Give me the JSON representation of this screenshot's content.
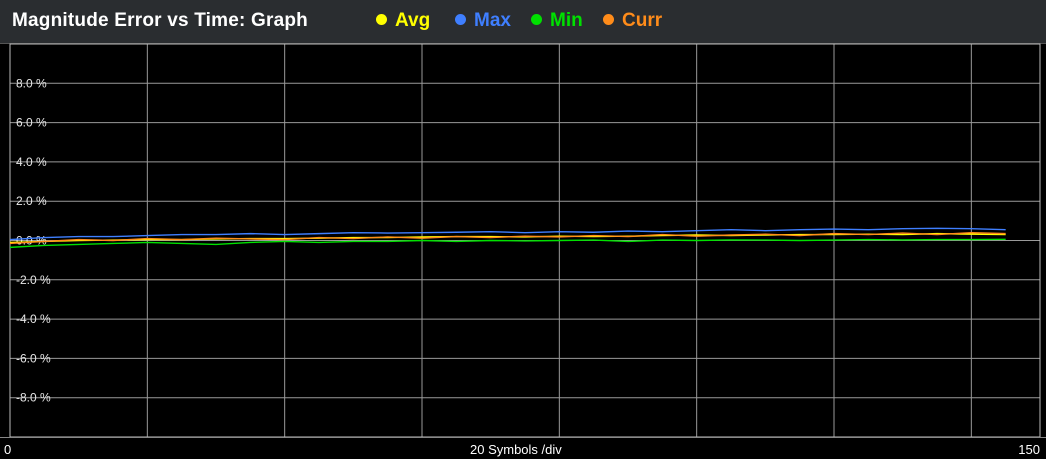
{
  "header": {
    "title": "Magnitude Error vs Time: Graph"
  },
  "legend": [
    {
      "label": "Avg",
      "color": "#ffff00",
      "icon": "dot-icon"
    },
    {
      "label": "Max",
      "color": "#3f7fff",
      "icon": "dot-icon"
    },
    {
      "label": "Min",
      "color": "#00e000",
      "icon": "dot-icon"
    },
    {
      "label": "Curr",
      "color": "#ff8c1a",
      "icon": "dot-icon"
    }
  ],
  "x_axis": {
    "start_label": "0",
    "center_label": "20 Symbols /div",
    "end_label": "150"
  },
  "chart_data": {
    "type": "line",
    "title": "Magnitude Error vs Time: Graph",
    "xlabel": "20 Symbols /div",
    "ylabel": "",
    "xlim": [
      0,
      150
    ],
    "ylim": [
      -10,
      10
    ],
    "grid": true,
    "legend_position": "top",
    "y_ticks": [
      8,
      6,
      4,
      2,
      0,
      -2,
      -4,
      -6,
      -8
    ],
    "y_tick_labels": [
      "8.0 %",
      "6.0 %",
      "4.0 %",
      "2.0 %",
      "0.0 %",
      "-2.0 %",
      "-4.0 %",
      "-6.0 %",
      "-8.0 %"
    ],
    "x_ticks": [
      0,
      20,
      40,
      60,
      80,
      100,
      120,
      140
    ],
    "x_tick_labels": [
      "0",
      "150"
    ],
    "x": [
      0,
      5,
      10,
      15,
      20,
      25,
      30,
      35,
      40,
      45,
      50,
      55,
      60,
      65,
      70,
      75,
      80,
      85,
      90,
      95,
      100,
      105,
      110,
      115,
      120,
      125,
      130,
      135,
      140,
      145
    ],
    "series": [
      {
        "name": "Avg",
        "color": "#ffff00",
        "values": [
          -0.1,
          -0.05,
          0.0,
          0.02,
          0.05,
          0.05,
          0.08,
          0.1,
          0.1,
          0.12,
          0.15,
          0.15,
          0.18,
          0.2,
          0.2,
          0.18,
          0.22,
          0.2,
          0.22,
          0.25,
          0.28,
          0.25,
          0.28,
          0.3,
          0.3,
          0.32,
          0.3,
          0.35,
          0.32,
          0.3
        ]
      },
      {
        "name": "Max",
        "color": "#3f7fff",
        "values": [
          0.05,
          0.15,
          0.2,
          0.2,
          0.25,
          0.3,
          0.3,
          0.35,
          0.3,
          0.35,
          0.4,
          0.38,
          0.4,
          0.42,
          0.45,
          0.4,
          0.45,
          0.42,
          0.48,
          0.45,
          0.5,
          0.55,
          0.5,
          0.55,
          0.58,
          0.55,
          0.6,
          0.62,
          0.6,
          0.55
        ]
      },
      {
        "name": "Min",
        "color": "#00e000",
        "values": [
          -0.35,
          -0.25,
          -0.2,
          -0.15,
          -0.1,
          -0.15,
          -0.2,
          -0.1,
          -0.05,
          -0.1,
          -0.05,
          -0.05,
          0.0,
          -0.05,
          0.0,
          -0.02,
          0.0,
          0.02,
          -0.05,
          0.02,
          0.0,
          0.03,
          0.02,
          0.0,
          0.02,
          0.05,
          0.03,
          0.05,
          0.05,
          0.06
        ]
      },
      {
        "name": "Curr",
        "color": "#ff8c1a",
        "values": [
          -0.15,
          -0.05,
          0.05,
          0.0,
          0.1,
          0.05,
          0.12,
          0.08,
          0.05,
          0.15,
          0.1,
          0.18,
          0.12,
          0.2,
          0.15,
          0.22,
          0.18,
          0.25,
          0.2,
          0.3,
          0.22,
          0.28,
          0.32,
          0.25,
          0.35,
          0.3,
          0.38,
          0.3,
          0.4,
          0.35
        ]
      }
    ]
  }
}
